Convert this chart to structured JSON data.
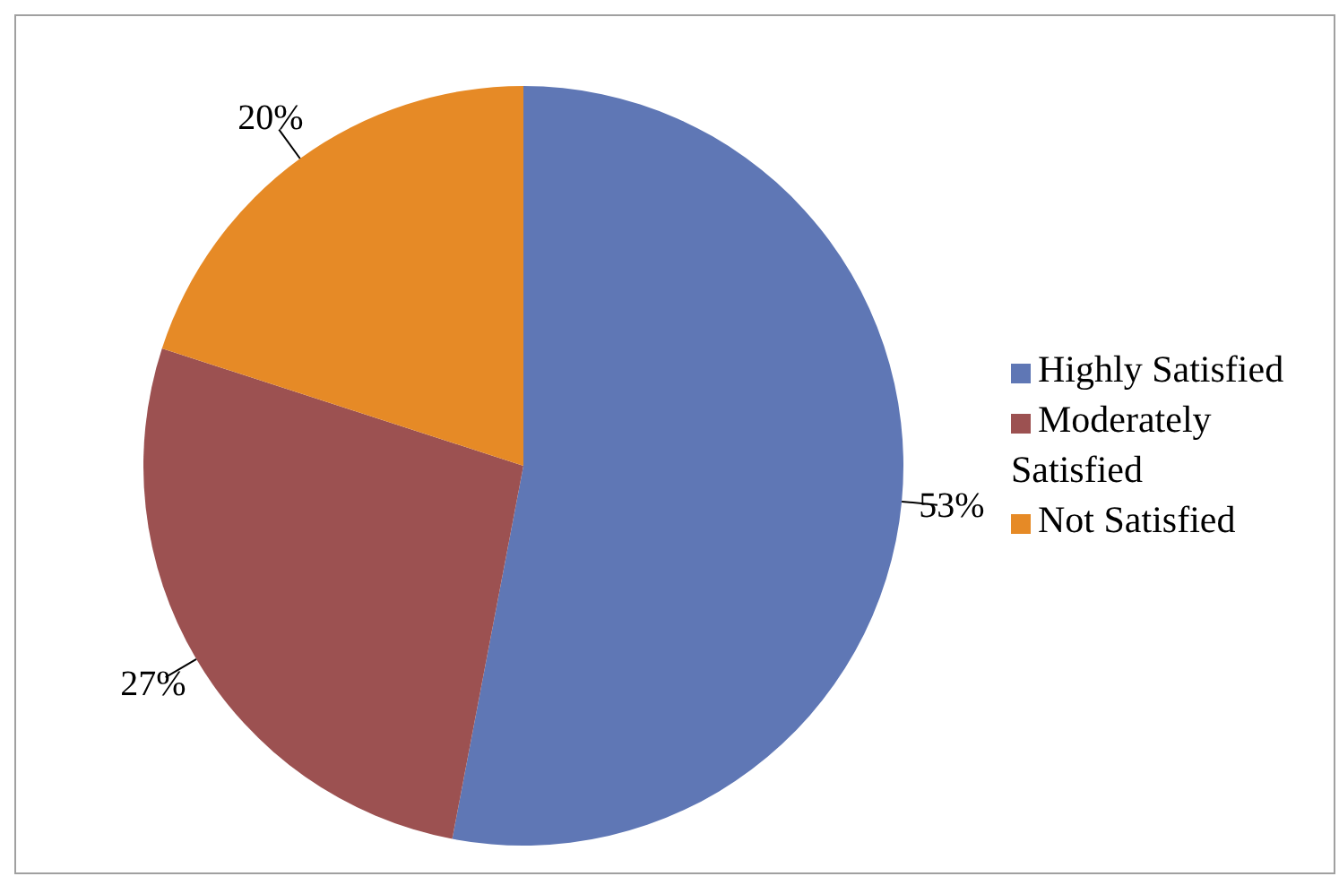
{
  "chart_data": {
    "type": "pie",
    "categories": [
      "Highly Satisfied",
      "Moderately Satisfied",
      "Not Satisfied"
    ],
    "values": [
      53,
      27,
      20
    ],
    "colors": [
      "#5f77b5",
      "#9c5151",
      "#e68a26"
    ],
    "value_labels": [
      "53%",
      "27%",
      "20%"
    ],
    "legend": "right"
  }
}
